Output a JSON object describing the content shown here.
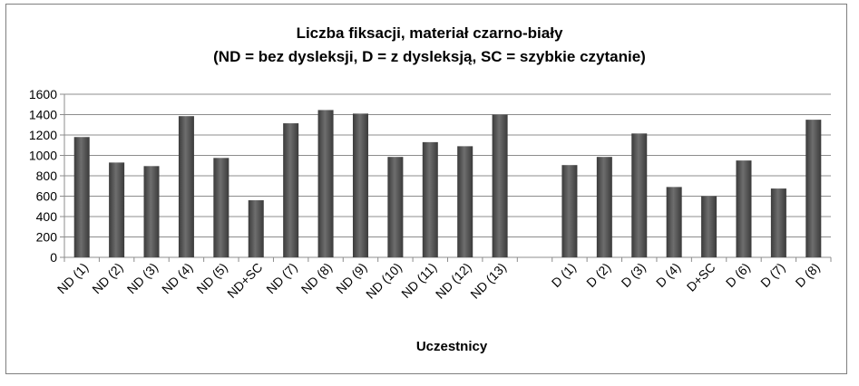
{
  "chart_data": {
    "type": "bar",
    "title_line1": "Liczba fiksacji, materiał czarno-biały",
    "title_line2": "(ND = bez dysleksji, D =  z dysleksją, SC = szybkie czytanie)",
    "xlabel": "Uczestnicy",
    "ylabel": "",
    "ylim": [
      0,
      1600
    ],
    "yticks": [
      0,
      200,
      400,
      600,
      800,
      1000,
      1200,
      1400,
      1600
    ],
    "grid": true,
    "legend": "none",
    "bar_color": "#555555",
    "categories": [
      "ND (1)",
      "ND (2)",
      "ND (3)",
      "ND (4)",
      "ND (5)",
      "ND+SC",
      "ND (7)",
      "ND (8)",
      "ND (9)",
      "ND (10)",
      "ND (11)",
      "ND (12)",
      "ND (13)",
      "",
      "D (1)",
      "D (2)",
      "D (3)",
      "D (4)",
      "D+SC",
      "D (6)",
      "D (7)",
      "D (8)"
    ],
    "values": [
      1180,
      930,
      895,
      1385,
      975,
      560,
      1315,
      1445,
      1410,
      985,
      1130,
      1090,
      1400,
      null,
      905,
      985,
      1215,
      690,
      600,
      950,
      675,
      1350
    ]
  }
}
